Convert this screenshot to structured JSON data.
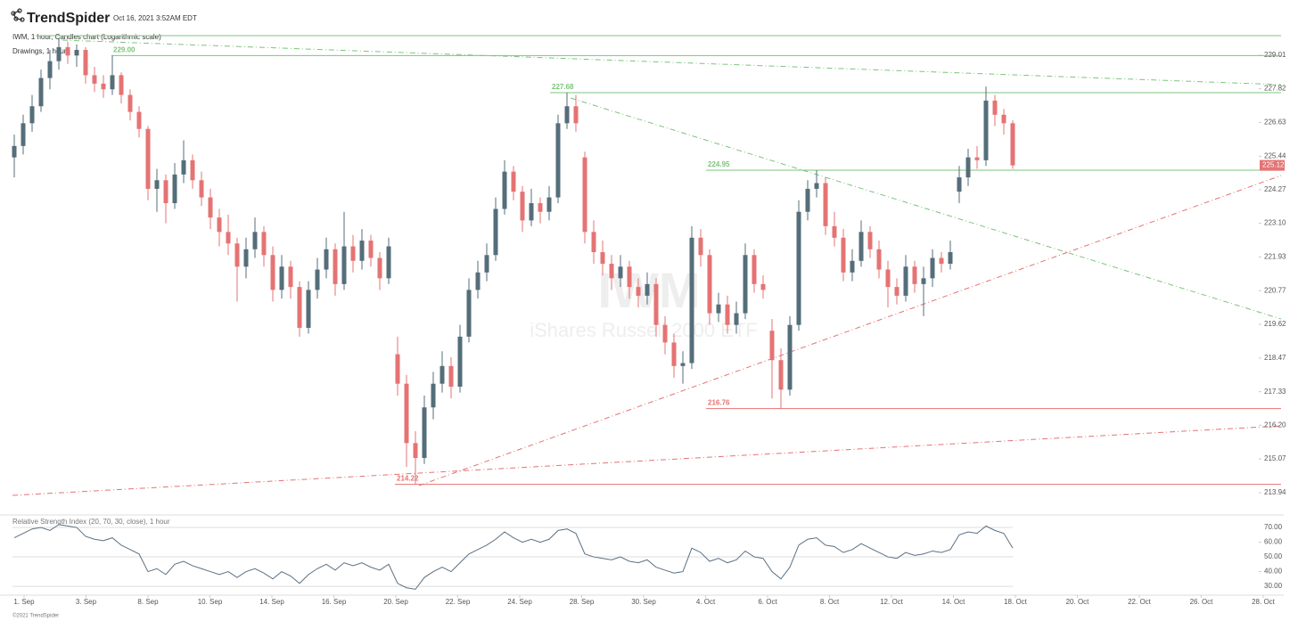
{
  "header": {
    "brand": "TrendSpider",
    "timestamp": "Oct 16, 2021 3:52AM EDT"
  },
  "chart_data": [
    {
      "type": "candlestick",
      "title": "IWM, 1 hour, Candles chart (Logarithmic scale)",
      "subtitle": "Drawings, 1 hour",
      "watermark_symbol": "IWM",
      "watermark_name": "iShares Russell 2000 ETF",
      "log_scale": true,
      "up_color": "#546e7a",
      "down_color": "#e57373",
      "ylim": [
        213.29,
        229.71
      ],
      "yticks": [
        229.01,
        227.82,
        226.63,
        225.44,
        224.27,
        {
          "value": 223.1,
          "label": "223.10"
        },
        221.93,
        220.77,
        219.62,
        218.47,
        217.33,
        {
          "value": 216.2,
          "label": "216.20"
        },
        215.07,
        213.94
      ],
      "last_price": 225.12,
      "levels": [
        {
          "value": 229,
          "label": "229.00",
          "color": "#7cc47c"
        },
        {
          "value": 227.68,
          "label": "227.68",
          "color": "#7cc47c"
        },
        {
          "value": 224.95,
          "label": "224.95",
          "color": "#7cc47c"
        },
        {
          "value": 216.76,
          "label": "216.76",
          "color": "#e57373"
        },
        {
          "value": 214.22,
          "label": "214.22",
          "color": "#e57373"
        }
      ],
      "candles": [
        [
          225.4,
          226.2,
          224.7,
          225.8
        ],
        [
          225.8,
          226.9,
          225.5,
          226.6
        ],
        [
          226.6,
          227.6,
          226.3,
          227.2
        ],
        [
          227.2,
          228.5,
          227.0,
          228.2
        ],
        [
          228.2,
          229.2,
          227.8,
          228.8
        ],
        [
          228.8,
          229.6,
          228.5,
          229.3
        ],
        [
          229.3,
          229.5,
          228.7,
          229.0
        ],
        [
          229.0,
          229.4,
          228.6,
          229.2
        ],
        [
          229.2,
          229.3,
          228.0,
          228.3
        ],
        [
          228.3,
          228.6,
          227.7,
          228.0
        ],
        [
          228.0,
          228.3,
          227.5,
          227.8
        ],
        [
          227.8,
          229.0,
          227.6,
          228.3
        ],
        [
          228.3,
          228.4,
          227.3,
          227.6
        ],
        [
          227.6,
          227.8,
          226.7,
          227.0
        ],
        [
          227.0,
          227.2,
          226.1,
          226.4
        ],
        [
          226.4,
          226.5,
          223.9,
          224.3
        ],
        [
          224.3,
          225.0,
          223.5,
          224.6
        ],
        [
          224.6,
          224.8,
          223.1,
          223.8
        ],
        [
          223.8,
          225.2,
          223.6,
          224.8
        ],
        [
          224.8,
          226.0,
          224.5,
          225.3
        ],
        [
          225.3,
          225.5,
          224.3,
          224.6
        ],
        [
          224.6,
          224.9,
          223.7,
          224.0
        ],
        [
          224.0,
          224.3,
          222.9,
          223.3
        ],
        [
          223.3,
          223.6,
          222.3,
          222.8
        ],
        [
          222.8,
          223.4,
          222.0,
          222.4
        ],
        [
          222.4,
          222.6,
          220.4,
          221.6
        ],
        [
          221.6,
          222.6,
          221.2,
          222.2
        ],
        [
          222.2,
          223.3,
          221.9,
          222.8
        ],
        [
          222.8,
          223.0,
          221.6,
          222.0
        ],
        [
          222.0,
          222.3,
          220.4,
          220.8
        ],
        [
          220.8,
          222.0,
          220.5,
          221.6
        ],
        [
          221.6,
          221.8,
          220.5,
          220.9
        ],
        [
          220.9,
          221.1,
          219.2,
          219.5
        ],
        [
          219.5,
          221.1,
          219.3,
          220.8
        ],
        [
          220.8,
          221.9,
          220.5,
          221.5
        ],
        [
          221.5,
          222.6,
          221.2,
          222.2
        ],
        [
          222.2,
          222.4,
          220.6,
          221.0
        ],
        [
          221.0,
          223.5,
          220.8,
          222.3
        ],
        [
          222.3,
          222.7,
          221.4,
          221.8
        ],
        [
          221.8,
          222.9,
          221.5,
          222.5
        ],
        [
          222.5,
          222.7,
          221.6,
          221.9
        ],
        [
          221.9,
          222.1,
          220.8,
          221.2
        ],
        [
          221.2,
          222.6,
          221.0,
          222.3
        ],
        [
          218.6,
          219.2,
          217.2,
          217.6
        ],
        [
          217.6,
          217.9,
          214.8,
          215.6
        ],
        [
          215.6,
          216.0,
          214.22,
          215.1
        ],
        [
          215.1,
          217.2,
          214.9,
          216.8
        ],
        [
          216.8,
          218.0,
          216.4,
          217.6
        ],
        [
          217.6,
          218.7,
          217.3,
          218.2
        ],
        [
          218.2,
          218.5,
          217.1,
          217.5
        ],
        [
          217.5,
          219.6,
          217.3,
          219.2
        ],
        [
          219.2,
          221.2,
          219.0,
          220.8
        ],
        [
          220.8,
          221.8,
          220.5,
          221.4
        ],
        [
          221.4,
          222.4,
          221.1,
          222.0
        ],
        [
          222.0,
          224.0,
          221.8,
          223.6
        ],
        [
          223.6,
          225.3,
          223.4,
          224.9
        ],
        [
          224.9,
          225.1,
          223.9,
          224.2
        ],
        [
          224.2,
          224.4,
          222.8,
          223.2
        ],
        [
          223.2,
          224.3,
          223.0,
          223.8
        ],
        [
          223.8,
          224.0,
          223.1,
          223.5
        ],
        [
          223.5,
          224.4,
          223.2,
          224.0
        ],
        [
          224.0,
          226.9,
          223.8,
          226.6
        ],
        [
          226.6,
          227.68,
          226.4,
          227.2
        ],
        [
          227.2,
          227.6,
          226.3,
          226.6
        ],
        [
          225.4,
          225.6,
          222.4,
          222.8
        ],
        [
          222.8,
          223.2,
          221.7,
          222.1
        ],
        [
          222.1,
          222.5,
          221.3,
          221.7
        ],
        [
          221.7,
          222.0,
          220.8,
          221.2
        ],
        [
          221.2,
          222.0,
          220.9,
          221.6
        ],
        [
          221.6,
          221.8,
          220.5,
          220.9
        ],
        [
          220.9,
          221.2,
          220.2,
          220.6
        ],
        [
          220.6,
          221.4,
          220.3,
          221.0
        ],
        [
          221.0,
          221.2,
          219.2,
          219.6
        ],
        [
          219.6,
          219.9,
          218.6,
          219.0
        ],
        [
          219.0,
          219.3,
          217.8,
          218.2
        ],
        [
          218.2,
          218.7,
          217.6,
          218.3
        ],
        [
          218.3,
          223.0,
          218.1,
          222.6
        ],
        [
          222.6,
          222.9,
          221.6,
          222.0
        ],
        [
          222.0,
          222.2,
          219.6,
          220.0
        ],
        [
          220.0,
          220.7,
          219.7,
          220.3
        ],
        [
          220.3,
          220.6,
          219.3,
          219.6
        ],
        [
          219.6,
          220.4,
          219.3,
          220.0
        ],
        [
          220.0,
          222.4,
          219.8,
          222.0
        ],
        [
          222.0,
          222.2,
          220.7,
          221.0
        ],
        [
          221.0,
          221.3,
          220.5,
          220.8
        ],
        [
          219.4,
          219.8,
          217.1,
          218.4
        ],
        [
          218.4,
          218.8,
          216.76,
          217.4
        ],
        [
          217.4,
          219.9,
          217.2,
          219.6
        ],
        [
          219.6,
          223.9,
          219.4,
          223.5
        ],
        [
          223.5,
          224.6,
          223.2,
          224.3
        ],
        [
          224.3,
          224.95,
          224.0,
          224.5
        ],
        [
          224.5,
          224.7,
          222.7,
          223.0
        ],
        [
          223.0,
          223.5,
          222.3,
          222.6
        ],
        [
          222.6,
          222.9,
          221.1,
          221.4
        ],
        [
          221.4,
          222.2,
          221.1,
          221.8
        ],
        [
          221.8,
          223.2,
          221.6,
          222.8
        ],
        [
          222.8,
          223.0,
          221.9,
          222.2
        ],
        [
          222.2,
          222.5,
          221.2,
          221.5
        ],
        [
          221.5,
          221.8,
          220.2,
          220.9
        ],
        [
          220.9,
          221.2,
          220.3,
          220.6
        ],
        [
          220.6,
          222.0,
          220.4,
          221.6
        ],
        [
          221.6,
          221.8,
          220.7,
          221.0
        ],
        [
          221.0,
          221.6,
          219.9,
          221.2
        ],
        [
          221.2,
          222.2,
          220.9,
          221.9
        ],
        [
          221.9,
          222.1,
          221.4,
          221.7
        ],
        [
          221.7,
          222.5,
          221.5,
          222.1
        ],
        [
          224.2,
          225.1,
          223.8,
          224.7
        ],
        [
          224.7,
          225.7,
          224.4,
          225.4
        ],
        [
          225.4,
          225.8,
          225.0,
          225.3
        ],
        [
          225.3,
          227.9,
          225.1,
          227.4
        ],
        [
          227.4,
          227.6,
          226.5,
          226.9
        ],
        [
          226.9,
          227.1,
          226.2,
          226.6
        ],
        [
          226.6,
          226.7,
          225.0,
          225.12
        ]
      ]
    },
    {
      "type": "line",
      "title": "Relative Strength Index (20, 70, 30, close), 1 hour",
      "color": "#5b7083",
      "ylim": [
        25.8,
        77.3
      ],
      "yticks": [
        {
          "value": 70,
          "label": "70.00"
        },
        {
          "value": 60,
          "label": "60.00"
        },
        {
          "value": 50,
          "label": "50.00"
        },
        {
          "value": 40,
          "label": "40.00"
        },
        {
          "value": 30,
          "label": "30.00"
        }
      ],
      "values": [
        63,
        66,
        69,
        70,
        68,
        72,
        71,
        70,
        64,
        62,
        61,
        63,
        58,
        55,
        52,
        40,
        42,
        38,
        45,
        47,
        44,
        42,
        40,
        38,
        40,
        36,
        40,
        42,
        39,
        35,
        40,
        37,
        32,
        38,
        42,
        45,
        41,
        46,
        44,
        46,
        43,
        41,
        45,
        32,
        29,
        28,
        36,
        40,
        43,
        40,
        46,
        52,
        55,
        58,
        62,
        67,
        63,
        60,
        62,
        60,
        62,
        68,
        69,
        66,
        52,
        50,
        49,
        48,
        50,
        47,
        46,
        48,
        43,
        41,
        39,
        40,
        56,
        53,
        47,
        49,
        46,
        48,
        54,
        50,
        49,
        40,
        35,
        43,
        58,
        62,
        63,
        58,
        57,
        53,
        55,
        59,
        56,
        53,
        50,
        49,
        53,
        51,
        52,
        54,
        53,
        55,
        65,
        67,
        66,
        71,
        68,
        66,
        56
      ],
      "date_labels": [
        "1. Sep",
        "3. Sep",
        "8. Sep",
        "10. Sep",
        "14. Sep",
        "16. Sep",
        "20. Sep",
        "22. Sep",
        "24. Sep",
        "28. Sep",
        "30. Sep",
        "4. Oct",
        "6. Oct",
        "8. Oct",
        "12. Oct",
        "14. Oct",
        "18. Oct",
        "20. Oct",
        "22. Oct",
        "26. Oct",
        "28. Oct"
      ]
    }
  ],
  "footer": "©2021 TrendSpider"
}
